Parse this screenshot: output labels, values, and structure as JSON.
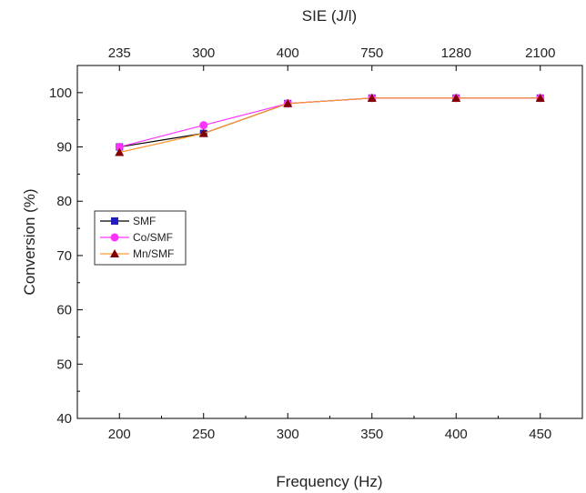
{
  "chart_data": {
    "type": "line",
    "title": "",
    "xlabel": "Frequency (Hz)",
    "ylabel": "Conversion (%)",
    "x2label": "SIE (J/l)",
    "x": [
      200,
      250,
      300,
      350,
      400,
      450
    ],
    "xlim": [
      175,
      475
    ],
    "ylim": [
      40,
      105
    ],
    "x_ticks": [
      200,
      250,
      300,
      350,
      400,
      450
    ],
    "y_ticks": [
      40,
      50,
      60,
      70,
      80,
      90,
      100
    ],
    "x2_tick_labels": [
      "235",
      "300",
      "400",
      "750",
      "1280",
      "2100"
    ],
    "grid": false,
    "legend_position": "center-left",
    "series": [
      {
        "name": "SMF",
        "color": "#000000",
        "marker_color": "#1f1fbf",
        "marker": "square",
        "values": [
          90,
          92.5,
          98,
          99,
          99,
          99
        ]
      },
      {
        "name": "Co/SMF",
        "color": "#ff33ff",
        "marker_color": "#ff33ff",
        "marker": "circle",
        "values": [
          90,
          94,
          98,
          99,
          99,
          99
        ]
      },
      {
        "name": "Mn/SMF",
        "color": "#ff9933",
        "marker_color": "#800000",
        "marker": "triangle",
        "values": [
          89,
          92.5,
          98,
          99,
          99,
          99
        ]
      }
    ]
  }
}
